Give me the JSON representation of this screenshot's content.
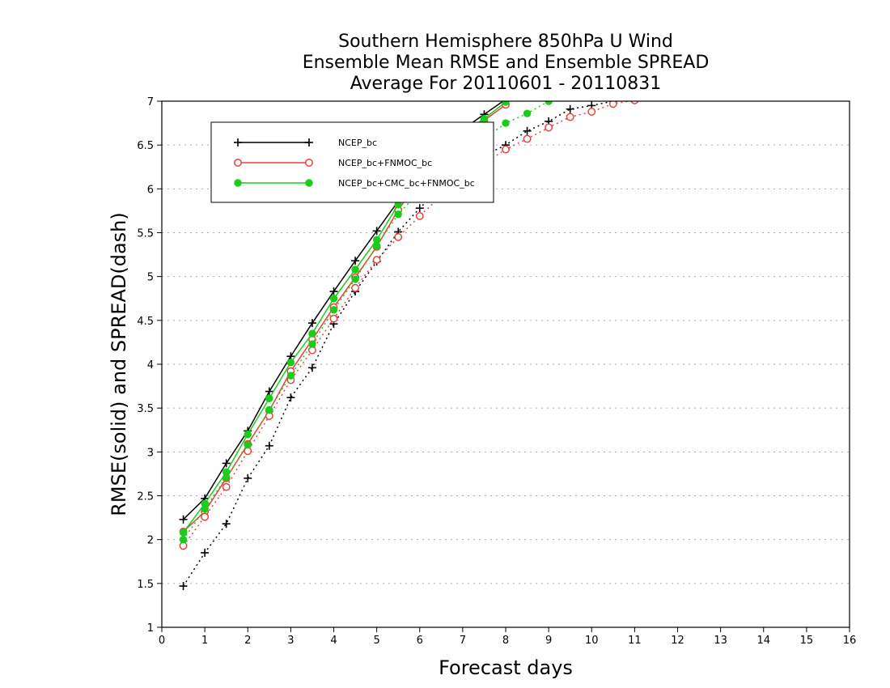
{
  "chart_data": {
    "type": "line",
    "title": [
      "Southern Hemisphere 850hPa U Wind",
      "Ensemble Mean RMSE and Ensemble SPREAD",
      "Average For 20110601 - 20110831"
    ],
    "xlabel": "Forecast days",
    "ylabel": "RMSE(solid) and SPREAD(dash)",
    "xlim": [
      0,
      16
    ],
    "ylim": [
      1,
      7
    ],
    "xticks": [
      "0",
      "1",
      "2",
      "3",
      "4",
      "5",
      "6",
      "7",
      "8",
      "9",
      "10",
      "11",
      "12",
      "13",
      "14",
      "15",
      "16"
    ],
    "yticks": [
      "1",
      "1.5",
      "2",
      "2.5",
      "3",
      "3.5",
      "4",
      "4.5",
      "5",
      "5.5",
      "6",
      "6.5",
      "7"
    ],
    "grid": true,
    "legend_position": "top-left",
    "x": [
      0.5,
      1,
      1.5,
      2,
      2.5,
      3,
      3.5,
      4,
      4.5,
      5,
      5.5,
      6,
      6.5,
      7,
      7.5,
      8,
      8.5,
      9,
      9.5,
      10,
      10.5,
      11
    ],
    "series": [
      {
        "name": "NCEP_bc",
        "color": "#000000",
        "marker": "plus",
        "rmse": [
          2.23,
          2.47,
          2.87,
          3.24,
          3.69,
          4.09,
          4.47,
          4.83,
          5.18,
          5.52,
          5.86,
          6.18,
          6.46,
          6.68,
          6.85,
          7.02,
          null,
          null,
          null,
          null,
          null,
          null
        ],
        "spread": [
          1.47,
          1.85,
          2.18,
          2.7,
          3.07,
          3.62,
          3.96,
          4.46,
          4.83,
          5.17,
          5.51,
          5.78,
          6.02,
          6.22,
          6.38,
          6.5,
          6.66,
          6.77,
          6.91,
          6.95,
          7.0,
          7.02
        ]
      },
      {
        "name": "NCEP_bc+FNMOC_bc",
        "color": "#e8413c",
        "marker": "open-circle",
        "rmse": [
          2.09,
          2.32,
          2.7,
          3.09,
          3.47,
          3.92,
          4.28,
          4.65,
          4.99,
          5.34,
          5.76,
          6.1,
          6.39,
          6.6,
          6.78,
          6.96,
          null,
          null,
          null,
          null,
          null,
          null
        ],
        "spread": [
          1.93,
          2.26,
          2.6,
          3.01,
          3.41,
          3.82,
          4.16,
          4.52,
          4.87,
          5.19,
          5.45,
          5.69,
          5.92,
          6.11,
          6.29,
          6.45,
          6.57,
          6.7,
          6.82,
          6.88,
          6.97,
          7.01
        ]
      },
      {
        "name": "NCEP_bc+CMC_bc+FNMOC_bc",
        "color": "#1ccc1c",
        "marker": "filled-circle",
        "rmse": [
          2.08,
          2.41,
          2.77,
          3.2,
          3.61,
          4.02,
          4.35,
          4.75,
          5.08,
          5.42,
          5.82,
          6.15,
          6.43,
          6.64,
          6.8,
          6.99,
          null,
          null,
          null,
          null,
          null,
          null
        ],
        "spread": [
          2.0,
          2.35,
          2.71,
          3.08,
          3.48,
          3.87,
          4.23,
          4.62,
          4.97,
          5.35,
          5.71,
          5.97,
          6.18,
          6.38,
          6.57,
          6.75,
          6.86,
          7.0,
          null,
          null,
          null,
          null
        ]
      }
    ]
  }
}
